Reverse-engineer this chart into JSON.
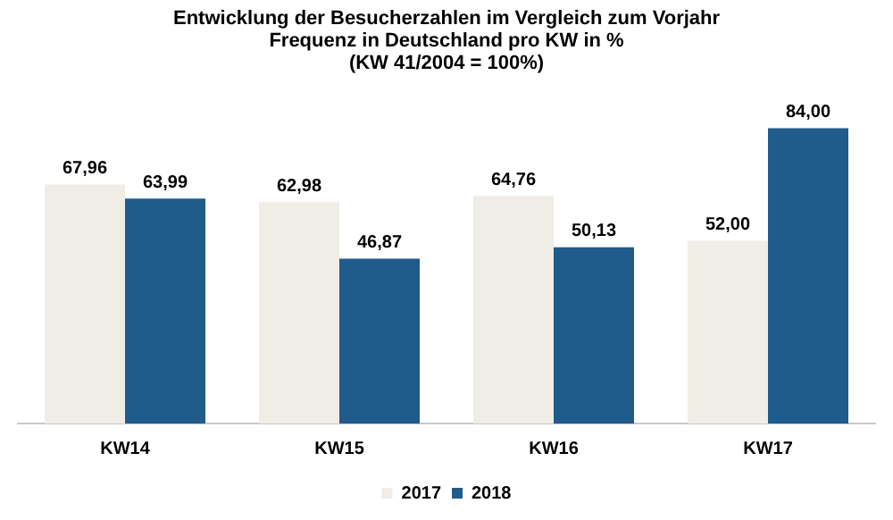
{
  "chart_data": {
    "type": "bar",
    "title": "Entwicklung der Besucherzahlen im Vergleich zum Vorjahr\nFrequenz in Deutschland pro KW in %\n(KW 41/2004 = 100%)",
    "categories": [
      "KW14",
      "KW15",
      "KW16",
      "KW17"
    ],
    "series": [
      {
        "name": "2017",
        "color": "#f0ede6",
        "values": [
          67.96,
          62.98,
          64.76,
          52.0
        ],
        "value_labels": [
          "67,96",
          "62,98",
          "64,76",
          "52,00"
        ]
      },
      {
        "name": "2018",
        "color": "#1f5c8b",
        "values": [
          63.99,
          46.87,
          50.13,
          84.0
        ],
        "value_labels": [
          "63,99",
          "46,87",
          "50,13",
          "84,00"
        ]
      }
    ],
    "grid": false,
    "legend": "bottom"
  }
}
